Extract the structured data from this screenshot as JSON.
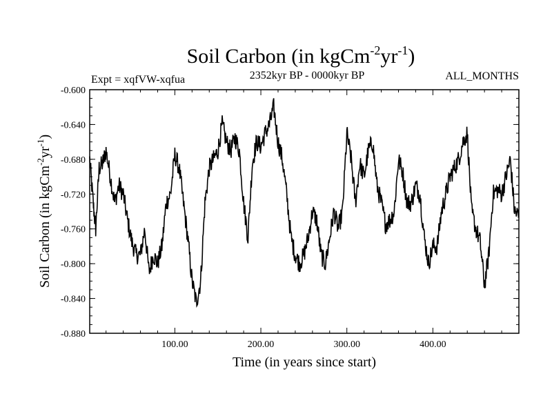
{
  "chart_data": {
    "type": "line",
    "title_main": "Soil Carbon (in kgCm",
    "title_sup1": "-2",
    "title_mid": "yr",
    "title_sup2": "-1",
    "title_end": ")",
    "subtitle_left": "Expt = xqfVW-xqfua",
    "subtitle_center": "2352kyr BP - 0000kyr BP",
    "subtitle_right": "ALL_MONTHS",
    "xlabel": "Time (in years since start)",
    "ylabel_main": "Soil Carbon (in kgCm",
    "ylabel_sup1": "-2",
    "ylabel_mid": "yr",
    "ylabel_sup2": "-1",
    "ylabel_end": ")",
    "xlim": [
      1,
      500
    ],
    "ylim": [
      -0.88,
      -0.6
    ],
    "xticks_major": [
      100,
      200,
      300,
      400
    ],
    "xtick_labels": [
      "100.00",
      "200.00",
      "300.00",
      "400.00"
    ],
    "yticks_major": [
      -0.6,
      -0.64,
      -0.68,
      -0.72,
      -0.76,
      -0.8,
      -0.84,
      -0.88
    ],
    "ytick_labels": [
      "-0.600",
      "-0.640",
      "-0.680",
      "-0.720",
      "-0.760",
      "-0.800",
      "-0.840",
      "-0.880"
    ],
    "series": [
      {
        "name": "Soil Carbon",
        "x": [
          1,
          5,
          8,
          12,
          16,
          20,
          25,
          30,
          35,
          40,
          45,
          50,
          55,
          60,
          65,
          70,
          75,
          80,
          85,
          90,
          95,
          100,
          105,
          110,
          115,
          120,
          125,
          130,
          135,
          140,
          145,
          150,
          155,
          160,
          165,
          170,
          175,
          180,
          185,
          190,
          195,
          200,
          205,
          210,
          215,
          220,
          225,
          230,
          235,
          240,
          245,
          250,
          255,
          260,
          265,
          270,
          275,
          280,
          285,
          290,
          295,
          300,
          305,
          310,
          315,
          320,
          325,
          330,
          335,
          340,
          345,
          350,
          355,
          360,
          365,
          370,
          375,
          380,
          385,
          390,
          395,
          400,
          405,
          410,
          415,
          420,
          425,
          430,
          435,
          440,
          445,
          450,
          455,
          460,
          465,
          470,
          475,
          480,
          485,
          490,
          495,
          500
        ],
        "y": [
          -0.68,
          -0.73,
          -0.76,
          -0.69,
          -0.685,
          -0.67,
          -0.7,
          -0.73,
          -0.71,
          -0.72,
          -0.75,
          -0.775,
          -0.79,
          -0.79,
          -0.76,
          -0.81,
          -0.79,
          -0.8,
          -0.78,
          -0.73,
          -0.72,
          -0.675,
          -0.69,
          -0.73,
          -0.77,
          -0.82,
          -0.845,
          -0.82,
          -0.73,
          -0.69,
          -0.68,
          -0.67,
          -0.64,
          -0.66,
          -0.67,
          -0.655,
          -0.67,
          -0.73,
          -0.77,
          -0.685,
          -0.66,
          -0.665,
          -0.65,
          -0.64,
          -0.62,
          -0.66,
          -0.68,
          -0.72,
          -0.77,
          -0.79,
          -0.8,
          -0.79,
          -0.77,
          -0.74,
          -0.75,
          -0.79,
          -0.8,
          -0.77,
          -0.74,
          -0.76,
          -0.74,
          -0.65,
          -0.68,
          -0.73,
          -0.685,
          -0.7,
          -0.67,
          -0.66,
          -0.71,
          -0.73,
          -0.755,
          -0.75,
          -0.74,
          -0.68,
          -0.695,
          -0.73,
          -0.73,
          -0.71,
          -0.72,
          -0.77,
          -0.8,
          -0.78,
          -0.78,
          -0.74,
          -0.72,
          -0.7,
          -0.69,
          -0.68,
          -0.66,
          -0.65,
          -0.74,
          -0.76,
          -0.775,
          -0.825,
          -0.79,
          -0.72,
          -0.715,
          -0.72,
          -0.7,
          -0.68,
          -0.74,
          -0.745
        ]
      }
    ]
  }
}
